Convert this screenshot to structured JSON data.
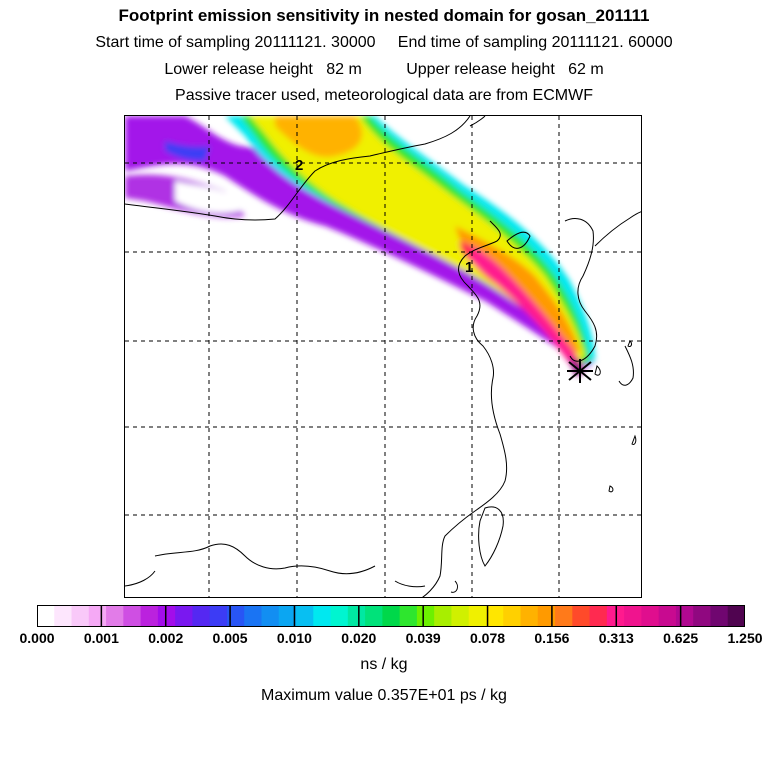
{
  "header": {
    "title": "Footprint emission sensitivity in nested domain for gosan_201111",
    "line2": "Start time of sampling 20111121. 30000     End time of sampling 20111121. 60000",
    "line3": "Lower release height   82 m          Upper release height   62 m",
    "line4": "Passive tracer used, meteorological data are from ECMWF"
  },
  "map": {
    "labels": [
      "1",
      "2"
    ],
    "receptor_marker": "star-icon"
  },
  "colorbar": {
    "ticks": [
      "0.000",
      "0.001",
      "0.002",
      "0.005",
      "0.010",
      "0.020",
      "0.039",
      "0.078",
      "0.156",
      "0.313",
      "0.625",
      "1.250"
    ],
    "unit": "ns / kg",
    "colors": [
      "#ffffff",
      "#fde6fd",
      "#f9c9f9",
      "#f5a9f5",
      "#e27ce8",
      "#cf4fe3",
      "#bb22de",
      "#a30dea",
      "#7a18f0",
      "#5528f2",
      "#3c3cf5",
      "#2855f5",
      "#1a74f3",
      "#128ef2",
      "#0ba6f2",
      "#08bff2",
      "#00e8f0",
      "#00f5d0",
      "#00e8a2",
      "#00e27a",
      "#00d84a",
      "#2ee62e",
      "#6cf000",
      "#a8ee00",
      "#d0f000",
      "#f0f000",
      "#ffe600",
      "#ffd000",
      "#ffb200",
      "#ff9a00",
      "#ff7a1a",
      "#ff4a2a",
      "#ff2a50",
      "#ff1a8e",
      "#f0148e",
      "#e00e8e",
      "#c80a90",
      "#b00890",
      "#900880",
      "#700670",
      "#500450"
    ]
  },
  "footer": {
    "max_value": "Maximum value  0.357E+01 ps / kg"
  }
}
